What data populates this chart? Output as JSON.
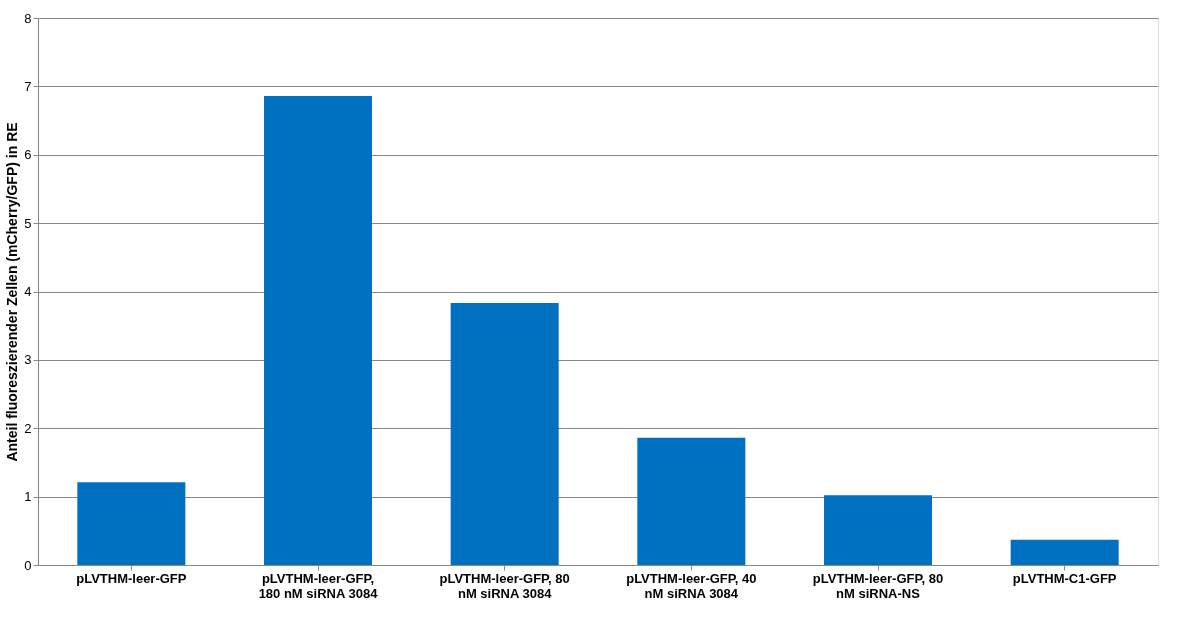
{
  "chart_data": {
    "type": "bar",
    "categories": [
      "pLVTHM-leer-GFP",
      "pLVTHM-leer-GFP, 180 nM siRNA 3084",
      "pLVTHM-leer-GFP, 80 nM siRNA 3084",
      "pLVTHM-leer-GFP, 40 nM siRNA 3084",
      "pLVTHM-leer-GFP, 80 nM siRNA-NS",
      "pLVTHM-C1-GFP"
    ],
    "values": [
      1.21,
      6.86,
      3.83,
      1.86,
      1.02,
      0.37
    ],
    "color": "#0070c0",
    "ylabel": "Anteil fluoreszierender Zellen (mCherry/GFP) in RE",
    "ylim": [
      0,
      8
    ],
    "yticks": [
      0,
      1,
      2,
      3,
      4,
      5,
      6,
      7,
      8
    ],
    "grid": "y"
  }
}
